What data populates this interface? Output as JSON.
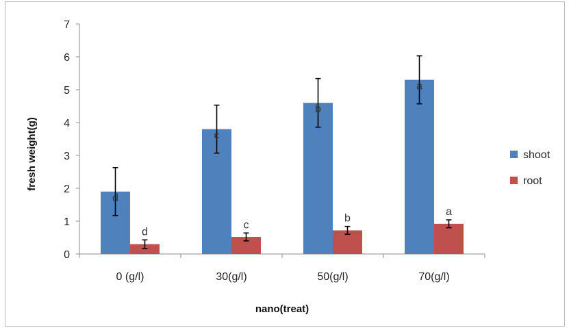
{
  "chart_data": {
    "type": "bar",
    "title": "",
    "xlabel": "nano(treat)",
    "ylabel": "fresh weight(g)",
    "ylim": [
      0,
      7
    ],
    "yticks": [
      0,
      1,
      2,
      3,
      4,
      5,
      6,
      7
    ],
    "categories": [
      "0 (g/l)",
      "30(g/l)",
      "50(g/l)",
      "70(g/l)"
    ],
    "series": [
      {
        "name": "shoot",
        "color": "#4f81bd",
        "values": [
          1.9,
          3.8,
          4.6,
          5.3
        ],
        "error": [
          0.73,
          0.73,
          0.74,
          0.73
        ],
        "labels": [
          "d",
          "c",
          "b",
          "a"
        ]
      },
      {
        "name": "root",
        "color": "#c0504d",
        "values": [
          0.3,
          0.52,
          0.72,
          0.92
        ],
        "error": [
          0.13,
          0.12,
          0.12,
          0.12
        ],
        "labels": [
          "d",
          "c",
          "b",
          "a"
        ]
      }
    ],
    "legend": "right"
  }
}
